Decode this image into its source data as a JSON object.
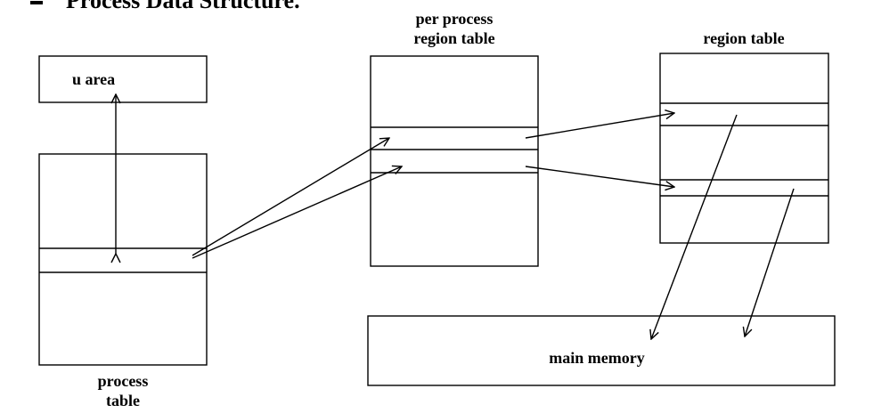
{
  "heading": {
    "bullet_icon": "square-bullet-icon",
    "text": "Process Data Structure."
  },
  "labels": {
    "u_area": "u area",
    "process_table_line1": "process",
    "process_table_line2": "table",
    "per_process_region_table_line1": "per process",
    "per_process_region_table_line2": "region table",
    "region_table": "region table",
    "main_memory": "main memory"
  },
  "colors": {
    "line": "#000000",
    "background": "#ffffff"
  }
}
